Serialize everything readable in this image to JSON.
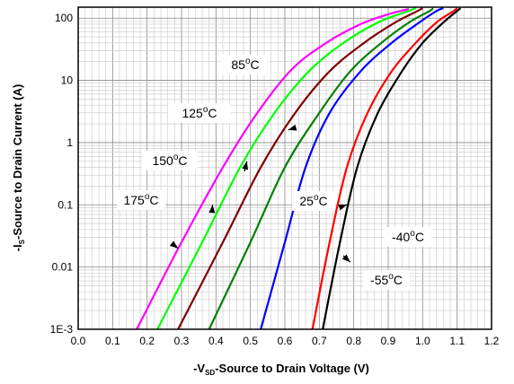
{
  "chart_data": {
    "type": "line",
    "y_scale": "log",
    "grid": true,
    "legend": "none",
    "xlim": [
      0.0,
      1.2
    ],
    "ylim": [
      0.001,
      150
    ],
    "x_ticks": [
      "0.0",
      "0.1",
      "0.2",
      "0.3",
      "0.4",
      "0.5",
      "0.6",
      "0.7",
      "0.8",
      "0.9",
      "1.0",
      "1.1",
      "1.2"
    ],
    "y_ticks": [
      "1E-3",
      "0.01",
      "0.1",
      "1",
      "10",
      "100"
    ],
    "xlabel": {
      "prefix": "-V",
      "sub": "SD",
      "rest": "-Source to Drain Voltage (V)"
    },
    "ylabel": {
      "prefix": "-I",
      "sub": "S",
      "rest": "-Source to Drain Current (A)"
    },
    "series": [
      {
        "label": {
          "num": "175",
          "deg": "o",
          "unit": "C"
        },
        "color": "#ff00ff",
        "x": [
          0.17,
          0.3,
          0.42,
          0.52,
          0.62,
          0.72,
          0.82,
          0.9,
          0.96
        ],
        "y": [
          0.001,
          0.025,
          0.4,
          3,
          15,
          40,
          80,
          115,
          140
        ]
      },
      {
        "label": {
          "num": "150",
          "deg": "o",
          "unit": "C"
        },
        "color": "#00ff00",
        "x": [
          0.23,
          0.36,
          0.47,
          0.57,
          0.67,
          0.77,
          0.87,
          0.95,
          0.98
        ],
        "y": [
          0.001,
          0.025,
          0.4,
          3,
          14,
          40,
          85,
          125,
          145
        ]
      },
      {
        "label": {
          "num": "125",
          "deg": "o",
          "unit": "C"
        },
        "color": "#800000",
        "x": [
          0.29,
          0.42,
          0.53,
          0.63,
          0.73,
          0.83,
          0.92,
          0.985,
          1.0
        ],
        "y": [
          0.001,
          0.025,
          0.4,
          3,
          14,
          40,
          85,
          130,
          145
        ]
      },
      {
        "label": {
          "num": "85",
          "deg": "o",
          "unit": "C"
        },
        "color": "#008000",
        "x": [
          0.38,
          0.5,
          0.6,
          0.7,
          0.79,
          0.88,
          0.96,
          1.02,
          1.03
        ],
        "y": [
          0.001,
          0.025,
          0.4,
          3,
          14,
          40,
          85,
          130,
          145
        ]
      },
      {
        "label": {
          "num": "25",
          "deg": "o",
          "unit": "C"
        },
        "color": "#0000ff",
        "x": [
          0.53,
          0.6,
          0.66,
          0.73,
          0.82,
          0.91,
          0.99,
          1.04,
          1.06
        ],
        "y": [
          0.001,
          0.025,
          0.4,
          3,
          14,
          40,
          85,
          130,
          145
        ]
      },
      {
        "label": {
          "num": "-40",
          "deg": "o",
          "unit": "C"
        },
        "color": "#ff0000",
        "x": [
          0.68,
          0.73,
          0.78,
          0.84,
          0.91,
          0.98,
          1.04,
          1.09,
          1.1
        ],
        "y": [
          0.001,
          0.025,
          0.4,
          3,
          14,
          40,
          85,
          130,
          145
        ]
      },
      {
        "label": {
          "num": "-55",
          "deg": "o",
          "unit": "C"
        },
        "color": "#000000",
        "x": [
          0.71,
          0.76,
          0.81,
          0.87,
          0.94,
          1.0,
          1.06,
          1.1,
          1.11
        ],
        "y": [
          0.001,
          0.025,
          0.4,
          3,
          14,
          40,
          85,
          130,
          145
        ]
      }
    ],
    "annotations": [
      {
        "series": 0,
        "label": {
          "num": "175",
          "deg": "o",
          "unit": "C"
        },
        "arrow_to": [
          0.29,
          0.02
        ]
      },
      {
        "series": 1,
        "label": {
          "num": "150",
          "deg": "o",
          "unit": "C"
        },
        "arrow_to": [
          0.39,
          0.1
        ]
      },
      {
        "series": 2,
        "label": {
          "num": "125",
          "deg": "o",
          "unit": "C"
        },
        "arrow_to": [
          0.49,
          0.5
        ]
      },
      {
        "series": 3,
        "label": {
          "num": "85",
          "deg": "o",
          "unit": "C"
        },
        "arrow_to": [
          0.61,
          1.6
        ]
      },
      {
        "series": 4,
        "label": {
          "num": "25",
          "deg": "o",
          "unit": "C"
        },
        "arrow_to": null
      },
      {
        "series": 5,
        "label": {
          "num": "-40",
          "deg": "o",
          "unit": "C"
        },
        "arrow_to": [
          0.78,
          0.1
        ]
      },
      {
        "series": 6,
        "label": {
          "num": "-55",
          "deg": "o",
          "unit": "C"
        },
        "arrow_to": [
          0.79,
          0.012
        ]
      }
    ]
  }
}
